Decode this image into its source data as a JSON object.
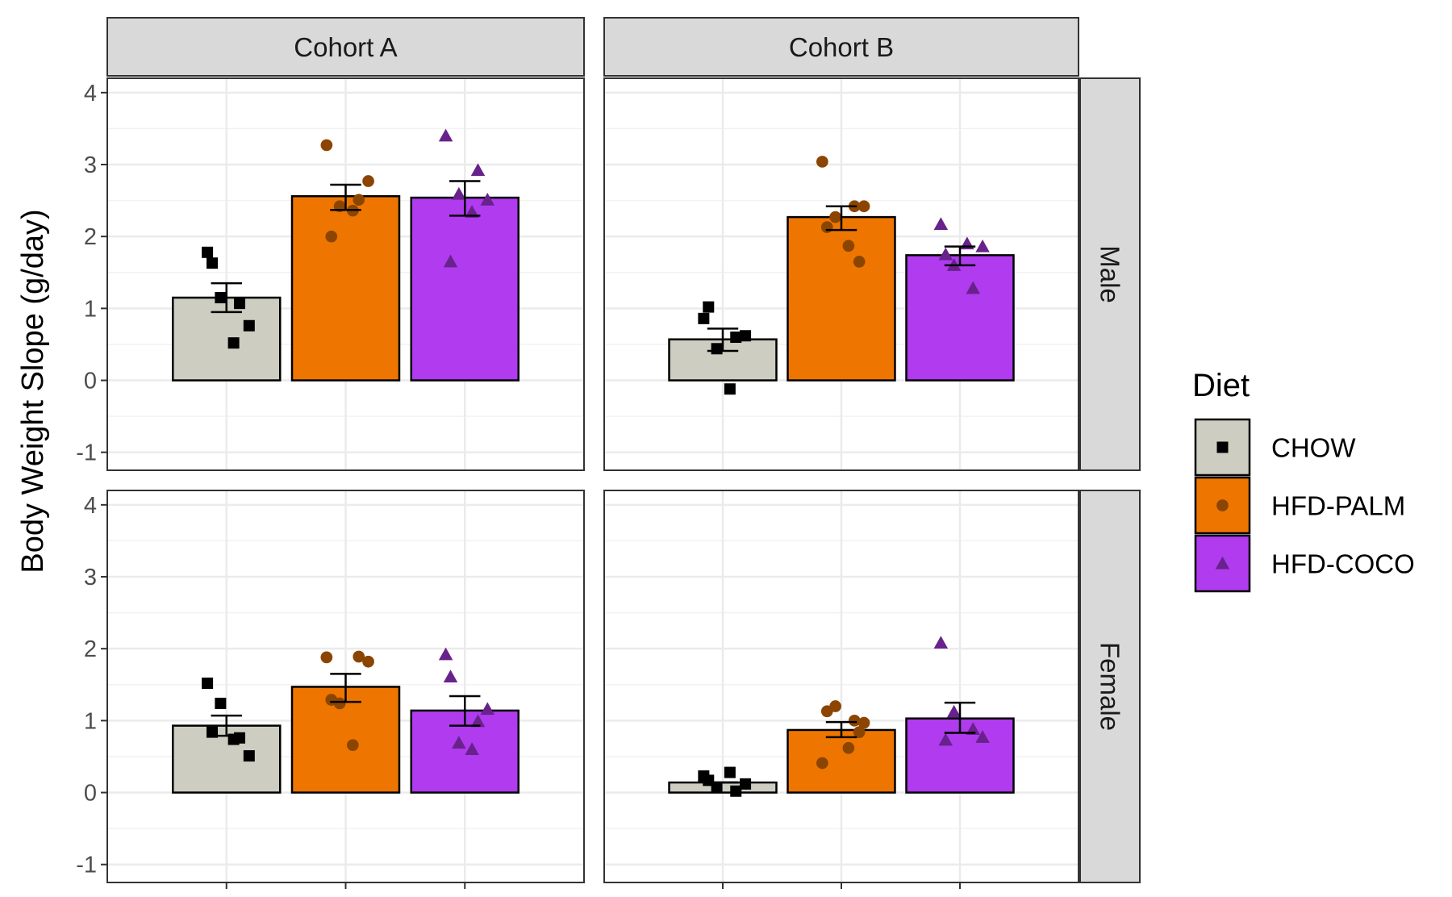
{
  "chart_data": {
    "type": "bar",
    "ylabel": "Body Weight Slope (g/day)",
    "xlabel": "",
    "ylim": [
      -1.25,
      4.2
    ],
    "yticks": [
      "-1",
      "0",
      "1",
      "2",
      "3",
      "4"
    ],
    "grid": true,
    "legend_title": "Diet",
    "legend_position": "right",
    "categories": [
      "CHOW",
      "HFD-PALM",
      "HFD-COCO"
    ],
    "colors": {
      "CHOW": "#cdcdc1",
      "HFD-PALM": "#ee7600",
      "HFD-COCO": "#b03bef"
    },
    "point_colors": {
      "CHOW": "#000000",
      "HFD-PALM": "#8b4500",
      "HFD-COCO": "#68228b"
    },
    "point_shapes": {
      "CHOW": "square",
      "HFD-PALM": "circle",
      "HFD-COCO": "triangle"
    },
    "columns": [
      "Cohort A",
      "Cohort B"
    ],
    "rows": [
      "Male",
      "Female"
    ],
    "panels": [
      {
        "column": "Cohort A",
        "row": "Male",
        "series": [
          {
            "category": "CHOW",
            "mean": 1.15,
            "se_low": 0.95,
            "se_high": 1.35,
            "points": [
              1.78,
              1.07,
              1.15,
              0.76,
              1.63,
              0.52
            ]
          },
          {
            "category": "HFD-PALM",
            "mean": 2.56,
            "se_low": 2.37,
            "se_high": 2.72,
            "points": [
              3.27,
              2.51,
              2.42,
              2.77,
              2.0,
              2.36
            ]
          },
          {
            "category": "HFD-COCO",
            "mean": 2.54,
            "se_low": 2.29,
            "se_high": 2.77,
            "points": [
              3.4,
              2.92,
              2.59,
              2.51,
              1.65,
              2.34
            ]
          }
        ]
      },
      {
        "column": "Cohort B",
        "row": "Male",
        "series": [
          {
            "category": "CHOW",
            "mean": 0.57,
            "se_low": 0.41,
            "se_high": 0.72,
            "points": [
              0.86,
              0.6,
              0.44,
              0.62,
              1.02,
              -0.12
            ]
          },
          {
            "category": "HFD-PALM",
            "mean": 2.27,
            "se_low": 2.09,
            "se_high": 2.42,
            "points": [
              3.04,
              2.42,
              2.27,
              2.42,
              2.13,
              1.87,
              1.65
            ]
          },
          {
            "category": "HFD-COCO",
            "mean": 1.74,
            "se_low": 1.6,
            "se_high": 1.86,
            "points": [
              2.17,
              1.28,
              1.6,
              1.86,
              1.75,
              1.9
            ]
          }
        ]
      },
      {
        "column": "Cohort A",
        "row": "Female",
        "series": [
          {
            "category": "CHOW",
            "mean": 0.93,
            "se_low": 0.79,
            "se_high": 1.07,
            "points": [
              1.52,
              0.76,
              1.24,
              0.51,
              0.84,
              0.74
            ]
          },
          {
            "category": "HFD-PALM",
            "mean": 1.47,
            "se_low": 1.26,
            "se_high": 1.65,
            "points": [
              1.88,
              1.89,
              1.24,
              1.82,
              1.29,
              0.66
            ]
          },
          {
            "category": "HFD-COCO",
            "mean": 1.14,
            "se_low": 0.93,
            "se_high": 1.34,
            "points": [
              1.92,
              0.99,
              0.69,
              1.16,
              1.61,
              0.6
            ]
          }
        ]
      },
      {
        "column": "Cohort B",
        "row": "Female",
        "series": [
          {
            "category": "CHOW",
            "mean": 0.14,
            "se_low": 0.14,
            "se_high": 0.14,
            "points": [
              0.23,
              0.02,
              0.07,
              0.12,
              0.17,
              0.28
            ]
          },
          {
            "category": "HFD-PALM",
            "mean": 0.87,
            "se_low": 0.77,
            "se_high": 0.98,
            "points": [
              0.41,
              1.0,
              1.2,
              0.97,
              1.13,
              0.62,
              0.84
            ]
          },
          {
            "category": "HFD-COCO",
            "mean": 1.03,
            "se_low": 0.83,
            "se_high": 1.25,
            "points": [
              2.08,
              0.88,
              1.12,
              0.77,
              0.73
            ]
          }
        ]
      }
    ]
  }
}
